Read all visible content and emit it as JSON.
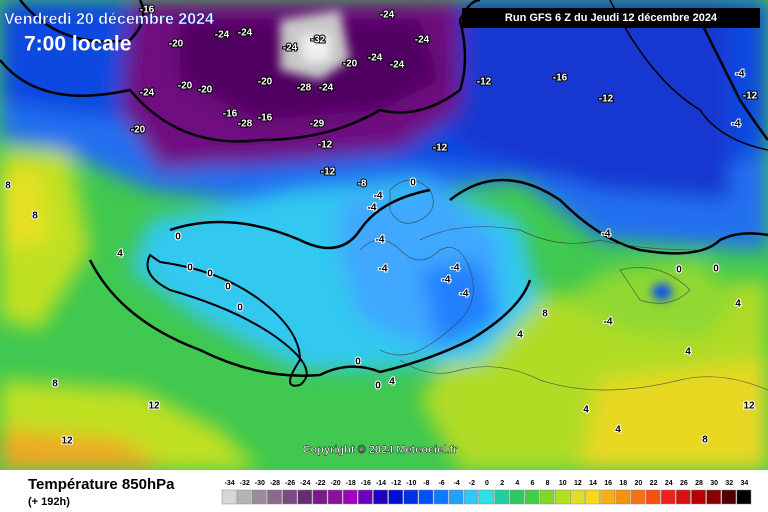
{
  "header": {
    "date": "Vendredi 20 décembre 2024",
    "time": "7:00 locale",
    "run": "Run GFS 6 Z du Jeudi 12 décembre 2024"
  },
  "map": {
    "labels": [
      -20,
      -24,
      -24,
      -24,
      -32,
      -20,
      -24,
      -24,
      -24,
      -24,
      -16,
      -24,
      -20,
      -20,
      -20,
      -16,
      -28,
      -16,
      -20,
      -28,
      -24,
      -29,
      -12,
      -12,
      -12,
      -12,
      -16,
      -12,
      -8,
      -4,
      -4,
      0,
      -4,
      -4,
      -4,
      -4,
      -4,
      0,
      0,
      0,
      0,
      0,
      4,
      0,
      0,
      4,
      8,
      12,
      12,
      -4,
      0,
      0,
      4,
      4,
      4,
      8,
      12,
      8,
      8,
      8,
      4,
      -4,
      4,
      -4,
      -4,
      -12
    ]
  },
  "copyright": "Copyright © 2024 Meteociel.fr",
  "legend": {
    "title": "Température 850hPa",
    "lead": "(+ 192h)",
    "values": [
      -34,
      -32,
      -30,
      -28,
      -26,
      -24,
      -22,
      -20,
      -18,
      -16,
      -14,
      -12,
      -10,
      -8,
      -6,
      -4,
      -2,
      0,
      2,
      4,
      6,
      8,
      10,
      12,
      14,
      16,
      18,
      20,
      22,
      24,
      26,
      28,
      30,
      32,
      34
    ],
    "colors": [
      "#d8d8d8",
      "#b4b4b4",
      "#9a8a9a",
      "#8a6a8a",
      "#7a4a80",
      "#6a2a78",
      "#7a1a88",
      "#8a10a0",
      "#a000c0",
      "#6a00c0",
      "#2000c0",
      "#0010d0",
      "#0030e8",
      "#0050f8",
      "#1078ff",
      "#20a0ff",
      "#30c8f8",
      "#30e0e0",
      "#20d0a0",
      "#30c860",
      "#40d040",
      "#80d820",
      "#b0e020",
      "#e0e020",
      "#f8d818",
      "#f8b010",
      "#f89010",
      "#f87010",
      "#f85010",
      "#f02020",
      "#d81010",
      "#b80000",
      "#880000",
      "#500000",
      "#000000"
    ]
  }
}
